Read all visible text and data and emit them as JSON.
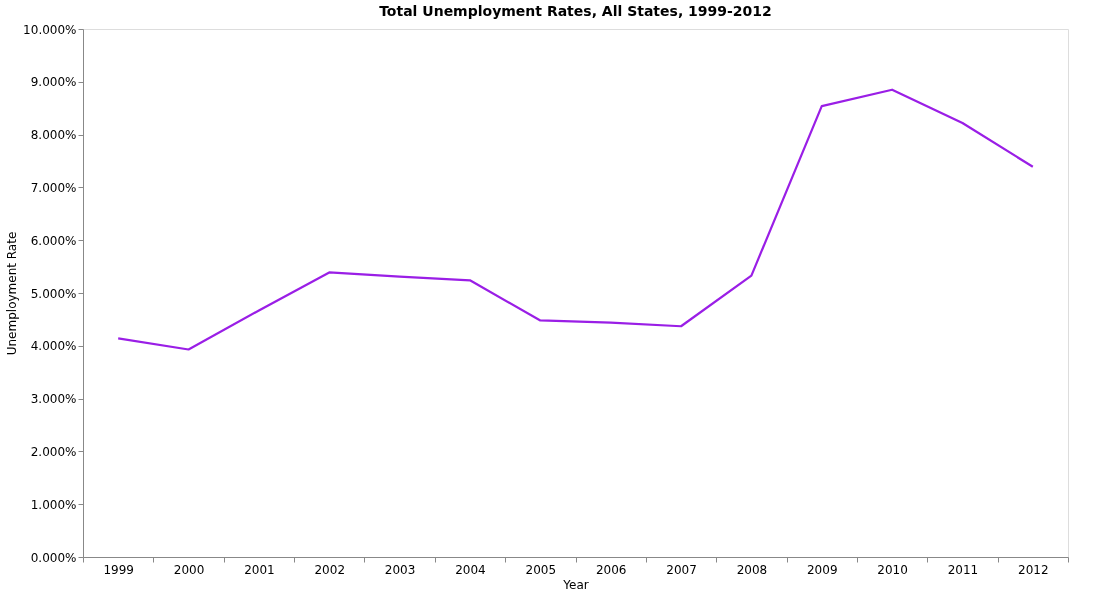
{
  "chart_data": {
    "type": "line",
    "title": "Total Unemployment Rates, All States, 1999-2012",
    "xlabel": "Year",
    "ylabel": "Unemployment Rate",
    "categories": [
      "1999",
      "2000",
      "2001",
      "2002",
      "2003",
      "2004",
      "2005",
      "2006",
      "2007",
      "2008",
      "2009",
      "2010",
      "2011",
      "2012"
    ],
    "series": [
      {
        "color": "#9a1ee6",
        "values": [
          4.14,
          3.93,
          4.67,
          5.39,
          5.31,
          5.24,
          4.48,
          4.44,
          4.37,
          5.33,
          8.54,
          8.85,
          8.22,
          7.39
        ]
      }
    ],
    "ylim": [
      0,
      10
    ],
    "yticks": [
      {
        "value": 0,
        "label": "0.000%"
      },
      {
        "value": 1,
        "label": "1.000%"
      },
      {
        "value": 2,
        "label": "2.000%"
      },
      {
        "value": 3,
        "label": "3.000%"
      },
      {
        "value": 4,
        "label": "4.000%"
      },
      {
        "value": 5,
        "label": "5.000%"
      },
      {
        "value": 6,
        "label": "6.000%"
      },
      {
        "value": 7,
        "label": "7.000%"
      },
      {
        "value": 8,
        "label": "8.000%"
      },
      {
        "value": 9,
        "label": "9.000%"
      },
      {
        "value": 10,
        "label": "10.000%"
      }
    ],
    "grid": false,
    "marker": "none",
    "line_style": "solid"
  }
}
